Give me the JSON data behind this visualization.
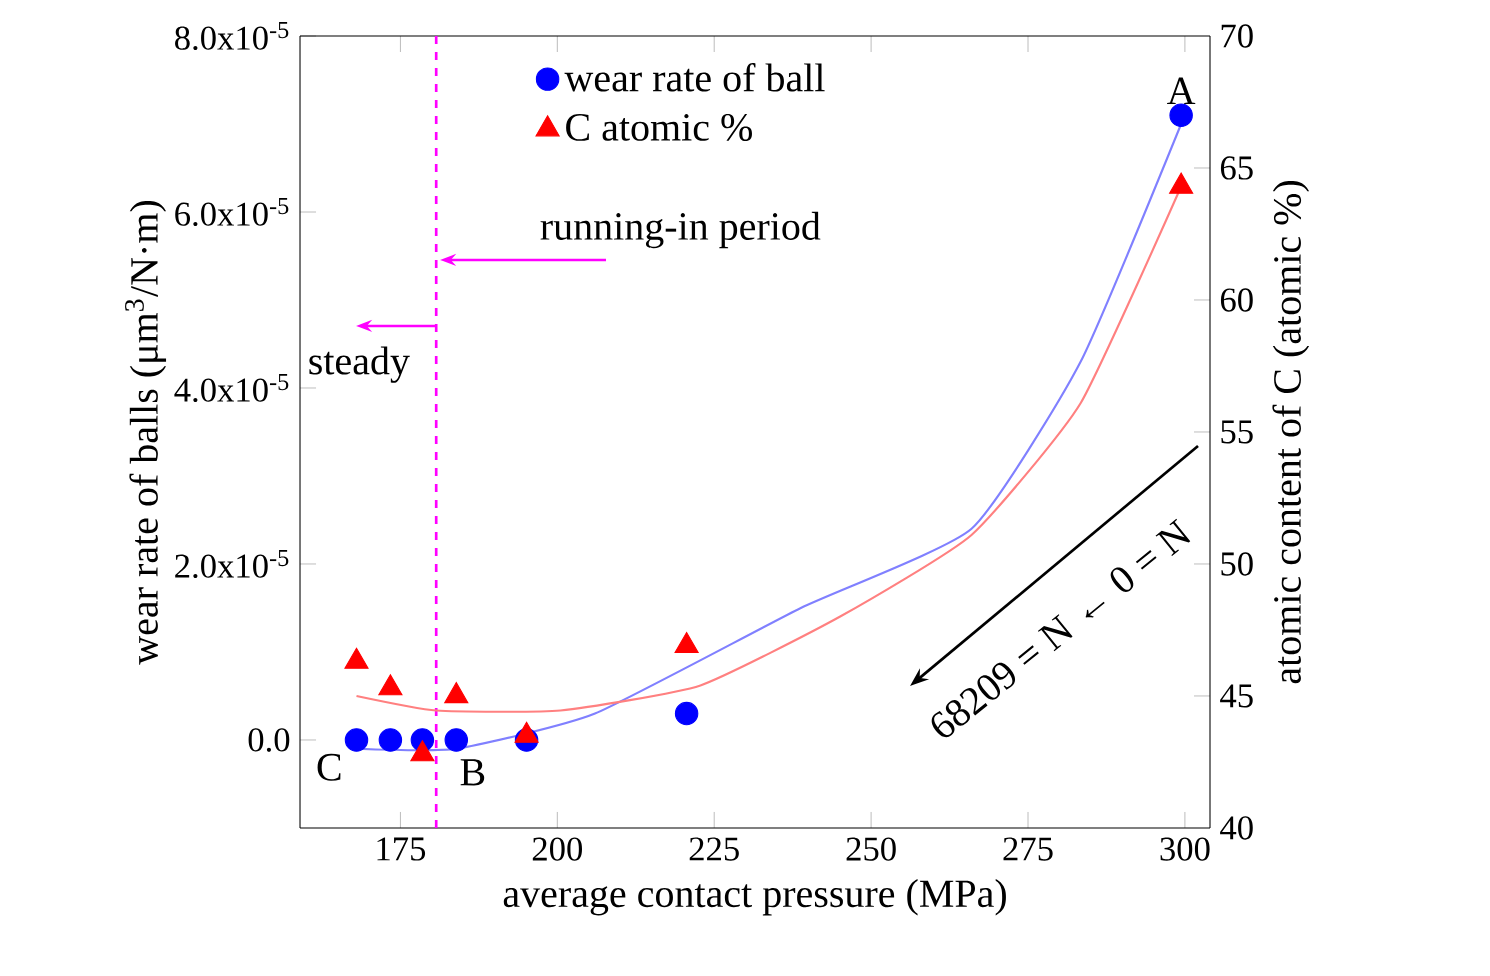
{
  "chart_data": {
    "type": "scatter",
    "xlabel": "average contact pressure (MPa)",
    "ylabel": "wear rate of balls (μm$^{3}$/N·m)",
    "y2label": "atomic content of C (atomic %)",
    "xlim": [
      159,
      304
    ],
    "xticks": [
      175,
      200,
      225,
      250,
      275,
      300
    ],
    "ylim": [
      -1e-05,
      8e-05
    ],
    "yticks": [
      {
        "value": 0,
        "label": "0.0"
      },
      {
        "value": 2e-05,
        "label": "2.0x10$^{-5}$"
      },
      {
        "value": 4e-05,
        "label": "4.0x10$^{-5}$"
      },
      {
        "value": 6e-05,
        "label": "6.0x10$^{-5}$"
      },
      {
        "value": 8e-05,
        "label": "8.0x10$^{-5}$"
      }
    ],
    "y2lim": [
      40,
      70
    ],
    "y2ticks": [
      40,
      45,
      50,
      55,
      60,
      65,
      70
    ],
    "legend": "top left",
    "grid": false,
    "series": [
      {
        "name": "wear rate of ball",
        "marker": "circle",
        "color": "#0000ff",
        "x": [
          168.0,
          173.4,
          178.5,
          183.9,
          195.1,
          220.6,
          299.4
        ],
        "values": [
          0,
          0,
          0,
          0,
          0,
          3e-06,
          7.1e-05
        ]
      },
      {
        "name": "C atomic %",
        "marker": "triangle",
        "axis": "y2",
        "color": "#ff0000",
        "x": [
          168.0,
          173.4,
          178.5,
          183.9,
          195.1,
          220.6,
          299.4
        ],
        "values": [
          46.3,
          45.3,
          42.8,
          45.0,
          43.5,
          46.9,
          64.3
        ]
      },
      {
        "type": "line",
        "marker": "none",
        "color": "#8080ff",
        "x": [
          168.0,
          183.9,
          206.0,
          238.8,
          266.0,
          283.4,
          299.4
        ],
        "values": [
          -1e-06,
          -1e-06,
          3e-06,
          1.5e-05,
          2.4e-05,
          4.3e-05,
          7e-05
        ]
      },
      {
        "type": "line",
        "marker": "none",
        "axis": "y2",
        "color": "#ff8080",
        "x": [
          168.0,
          180.7,
          200.5,
          222.8,
          245.0,
          266.0,
          283.4,
          299.4
        ],
        "values": [
          45.0,
          44.45,
          44.45,
          45.4,
          48.0,
          51.1,
          56.1,
          64.3
        ]
      }
    ],
    "ref_lines": [
      {
        "axis": "x",
        "value": 180.7,
        "color": "#ff00ff",
        "line_style": "dashed"
      }
    ],
    "annotations": [
      {
        "text": "A",
        "x": 299.4,
        "y": 7.1e-05
      },
      {
        "text": "B",
        "x": 183.9,
        "y": 0
      },
      {
        "text": "C",
        "x": 168.0,
        "y": 0
      },
      "running-in period",
      "steady",
      "68209 = N ← 0 = N"
    ]
  }
}
